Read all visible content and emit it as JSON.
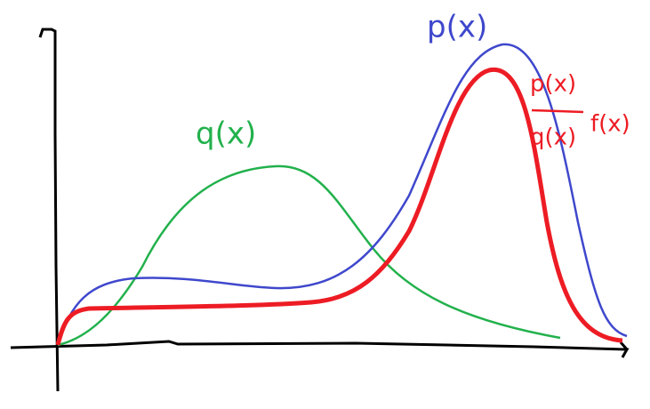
{
  "labels": {
    "q": "q(x)",
    "p": "p(x)",
    "ratio_numerator": "p(x)",
    "ratio_denominator": "q(x)",
    "f": "f(x)"
  }
}
